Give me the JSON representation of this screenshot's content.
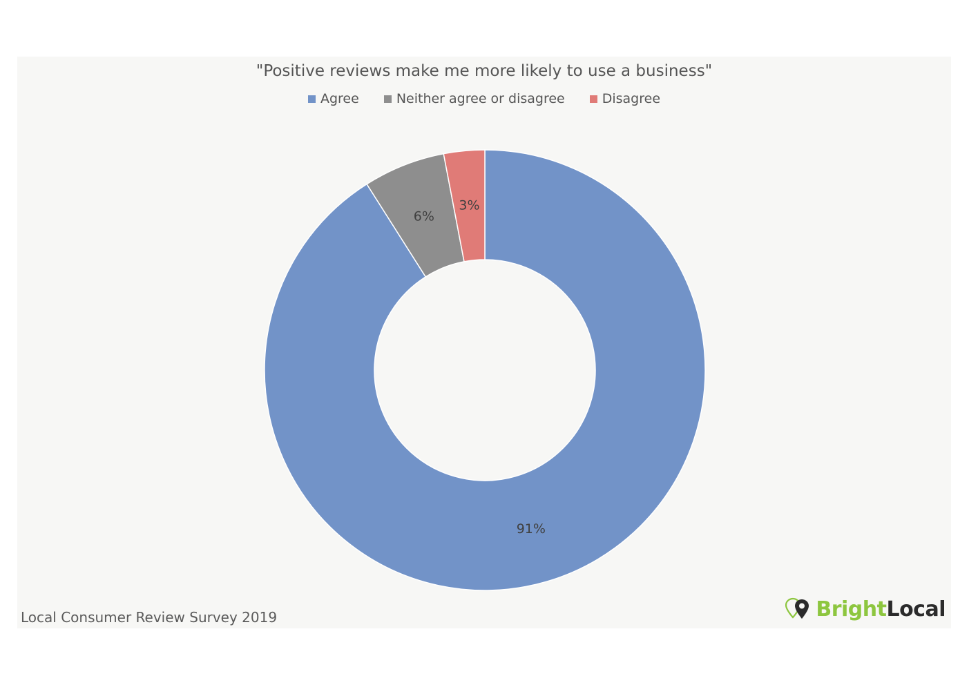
{
  "chart_data": {
    "type": "pie",
    "variant": "donut",
    "title": "\"Positive reviews make me more likely to use a business\"",
    "series": [
      {
        "name": "Agree",
        "value": 91,
        "label": "91%",
        "color": "#7293c8"
      },
      {
        "name": "Neither agree or disagree",
        "value": 6,
        "label": "6%",
        "color": "#8e8e8e"
      },
      {
        "name": "Disagree",
        "value": 3,
        "label": "3%",
        "color": "#e07b77"
      }
    ],
    "legend_position": "top-center",
    "start_angle": "12 o'clock",
    "direction": "clockwise"
  },
  "footer": {
    "source": "Local Consumer Review Survey 2019"
  },
  "brand": {
    "part1": "Bright",
    "part2": "Local",
    "icon": "map-pin-icon"
  }
}
